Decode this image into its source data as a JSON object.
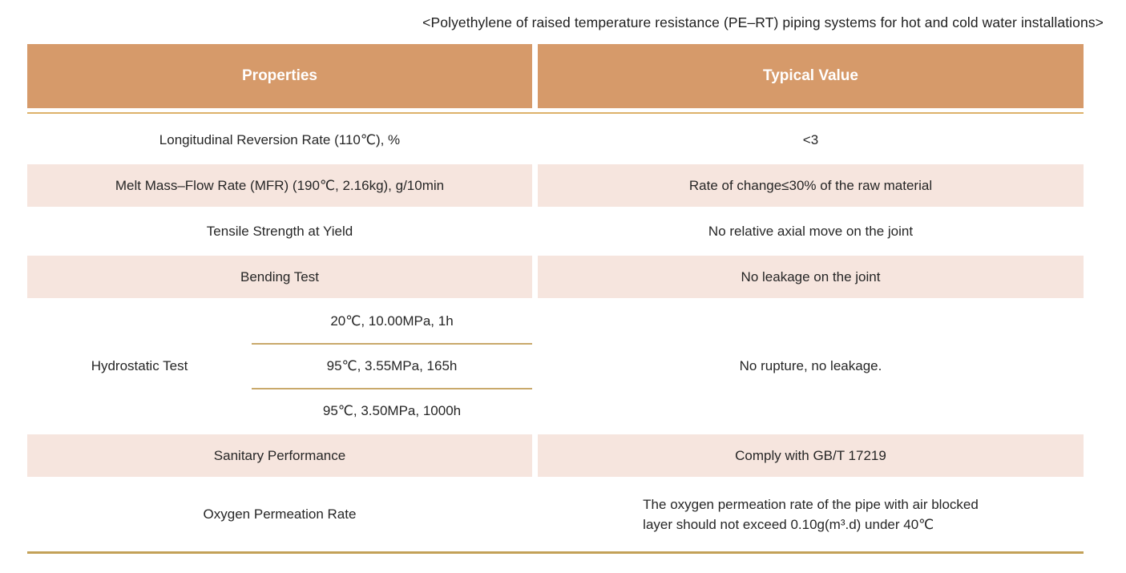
{
  "title": "<Polyethylene of raised temperature resistance (PE–RT) piping systems for hot and cold water installations>",
  "table": {
    "columns": [
      "Properties",
      "Typical Value"
    ],
    "rows": [
      {
        "property": "Longitudinal Reversion Rate (110℃), %",
        "value": "<3"
      },
      {
        "property": "Melt Mass–Flow Rate (MFR) (190℃, 2.16kg), g/10min",
        "value": "Rate of change≤30% of the raw material"
      },
      {
        "property": "Tensile Strength at Yield",
        "value": "No relative axial move on the joint"
      },
      {
        "property": "Bending Test",
        "value": "No leakage on the joint"
      },
      {
        "property": "Hydrostatic Test",
        "conditions": [
          "20℃, 10.00MPa, 1h",
          "95℃, 3.55MPa, 165h",
          "95℃, 3.50MPa, 1000h"
        ],
        "value": "No rupture, no leakage."
      },
      {
        "property": "Sanitary Performance",
        "value": "Comply with GB/T 17219"
      },
      {
        "property": "Oxygen Permeation Rate",
        "value_lines": [
          "The oxygen permeation rate of the pipe with air blocked",
          "layer should not exceed 0.10g(m³.d) under 40℃"
        ]
      }
    ],
    "colors": {
      "header_bg": "#d69a6a",
      "stripe_bg": "#f6e5de",
      "header_underline": "#ddb26a",
      "divider_gold": "#c9a96b",
      "bottom_line": "#c3a158",
      "text": "#262626"
    }
  }
}
